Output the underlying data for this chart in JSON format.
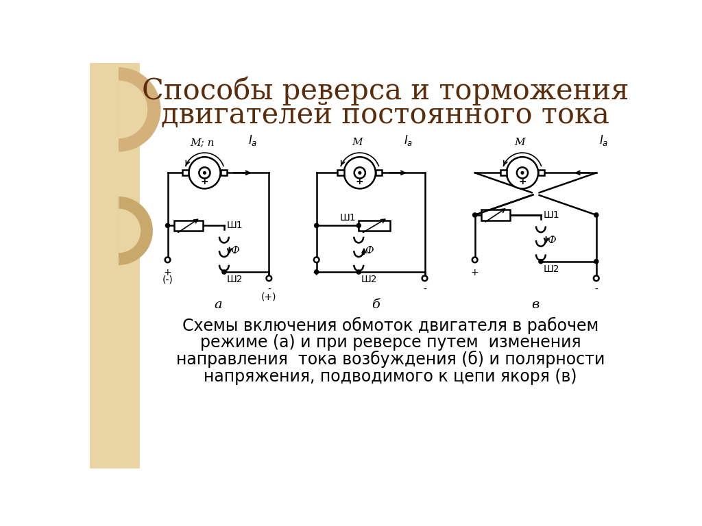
{
  "title_line1": "Способы реверса и торможения",
  "title_line2": "двигателей постоянного тока",
  "title_color": "#5a2d0c",
  "title_fontsize": 30,
  "bg_color": "#ffffff",
  "left_bg_color": "#e8d5a3",
  "left_bg_darker": "#c9a86c",
  "caption_line1": "Схемы включения обмоток двигателя в рабочем",
  "caption_line2": "режиме (а) и при реверсе путем  изменения",
  "caption_line3": "направления  тока возбуждения (б) и полярности",
  "caption_line4": "напряжения, подводимого к цепи якоря (в)",
  "caption_fontsize": 17
}
